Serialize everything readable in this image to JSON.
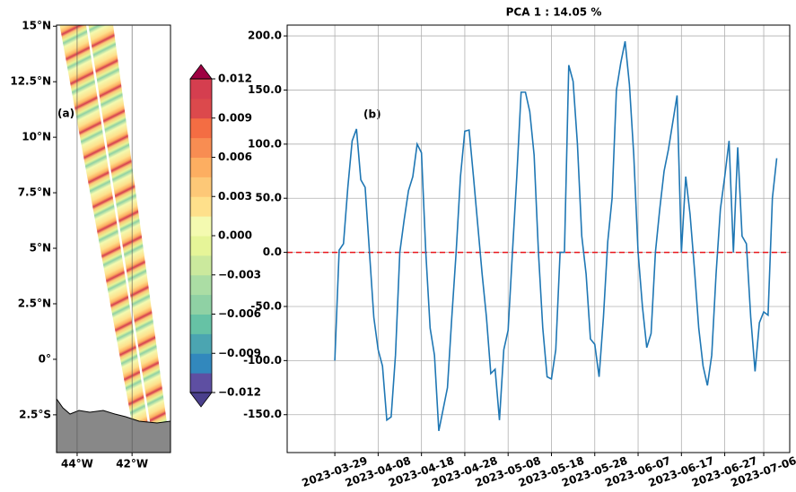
{
  "chart_data": [
    {
      "type": "map",
      "title": "(a)",
      "xlim": [
        -44.75,
        -40.6
      ],
      "ylim": [
        -4.2,
        15.05
      ],
      "xticks": [
        {
          "value": -44,
          "label": "44°W"
        },
        {
          "value": -42,
          "label": "42°W"
        }
      ],
      "yticks": [
        {
          "value": 15,
          "label": "15°N"
        },
        {
          "value": 12.5,
          "label": "12.5°N"
        },
        {
          "value": 10,
          "label": "10°N"
        },
        {
          "value": 7.5,
          "label": "7.5°N"
        },
        {
          "value": 5,
          "label": "5°N"
        },
        {
          "value": 2.5,
          "label": "2.5°N"
        },
        {
          "value": 0,
          "label": "0°"
        },
        {
          "value": -2.5,
          "label": "2.5°S"
        }
      ],
      "colorbar_lim": [
        -0.012,
        0.012
      ],
      "colorbar_ticks": [
        0.012,
        0.009,
        0.006,
        0.003,
        {
          "value": 0,
          "label": "0.000"
        },
        {
          "value": -0.003,
          "label": "−0.003"
        },
        {
          "value": -0.006,
          "label": "−0.006"
        },
        {
          "value": -0.009,
          "label": "−0.009"
        },
        {
          "value": -0.012,
          "label": "−0.012"
        }
      ],
      "colorbar_colors": [
        "#5e4fa2",
        "#3288bd",
        "#4ba5b1",
        "#66c2a5",
        "#8fd1a4",
        "#abdda4",
        "#cbe99d",
        "#e6f598",
        "#f4fab0",
        "#fee08b",
        "#fdc877",
        "#fdae61",
        "#f88d52",
        "#f46d43",
        "#dc494c",
        "#d53e4f"
      ],
      "colorbar_extend_colors": [
        "#4a3f8c",
        "#9e0142"
      ]
    },
    {
      "type": "line",
      "title": "PCA 1 : 14.05 %",
      "annotation": "(b)",
      "x": [
        "2023-03-29",
        "2023-03-30",
        "2023-03-31",
        "2023-04-01",
        "2023-04-02",
        "2023-04-03",
        "2023-04-04",
        "2023-04-05",
        "2023-04-06",
        "2023-04-07",
        "2023-04-08",
        "2023-04-09",
        "2023-04-10",
        "2023-04-11",
        "2023-04-12",
        "2023-04-13",
        "2023-04-14",
        "2023-04-15",
        "2023-04-16",
        "2023-04-17",
        "2023-04-18",
        "2023-04-19",
        "2023-04-20",
        "2023-04-21",
        "2023-04-22",
        "2023-04-23",
        "2023-04-24",
        "2023-04-25",
        "2023-04-26",
        "2023-04-27",
        "2023-04-28",
        "2023-04-29",
        "2023-04-30",
        "2023-05-01",
        "2023-05-02",
        "2023-05-03",
        "2023-05-04",
        "2023-05-05",
        "2023-05-06",
        "2023-05-07",
        "2023-05-08",
        "2023-05-09",
        "2023-05-10",
        "2023-05-11",
        "2023-05-12",
        "2023-05-13",
        "2023-05-14",
        "2023-05-15",
        "2023-05-16",
        "2023-05-17",
        "2023-05-18",
        "2023-05-19",
        "2023-05-20",
        "2023-05-21",
        "2023-05-22",
        "2023-05-23",
        "2023-05-24",
        "2023-05-25",
        "2023-05-26",
        "2023-05-27",
        "2023-05-28",
        "2023-05-29",
        "2023-05-30",
        "2023-05-31",
        "2023-06-01",
        "2023-06-02",
        "2023-06-03",
        "2023-06-04",
        "2023-06-05",
        "2023-06-06",
        "2023-06-07",
        "2023-06-08",
        "2023-06-09",
        "2023-06-10",
        "2023-06-11",
        "2023-06-12",
        "2023-06-13",
        "2023-06-14",
        "2023-06-15",
        "2023-06-16",
        "2023-06-17",
        "2023-06-18",
        "2023-06-19",
        "2023-06-20",
        "2023-06-21",
        "2023-06-22",
        "2023-06-23",
        "2023-06-24",
        "2023-06-25",
        "2023-06-26",
        "2023-06-27",
        "2023-06-28",
        "2023-06-29",
        "2023-06-30",
        "2023-07-01",
        "2023-07-02",
        "2023-07-03",
        "2023-07-04",
        "2023-07-05",
        "2023-07-06",
        "2023-07-07",
        "2023-07-08",
        "2023-07-09"
      ],
      "series": [
        {
          "color": "#1f77b4",
          "values": [
            -100,
            2,
            8,
            60,
            103,
            114,
            67,
            60,
            0,
            -60,
            -90,
            -105,
            -155,
            -152,
            -95,
            0,
            30,
            57,
            70,
            100,
            92,
            0,
            -70,
            -95,
            -165,
            -145,
            -125,
            -60,
            0,
            70,
            112,
            113,
            70,
            25,
            -20,
            -60,
            -112,
            -108,
            -155,
            -90,
            -72,
            0,
            70,
            148,
            148,
            130,
            90,
            0,
            -70,
            -115,
            -117,
            -90,
            0,
            0,
            173,
            158,
            100,
            15,
            -20,
            -80,
            -85,
            -115,
            -60,
            10,
            50,
            150,
            175,
            195,
            155,
            90,
            0,
            -50,
            -88,
            -75,
            0,
            40,
            75,
            95,
            120,
            145,
            0,
            70,
            35,
            -15,
            -70,
            -105,
            -123,
            -95,
            -20,
            40,
            70,
            103,
            0,
            97,
            15,
            8,
            -60,
            -110,
            -65,
            -55,
            -58,
            50,
            87
          ]
        }
      ],
      "xlim": [
        "2023-03-18",
        "2023-07-12"
      ],
      "xticks": [
        "2023-03-29",
        "2023-04-08",
        "2023-04-18",
        "2023-04-28",
        "2023-05-08",
        "2023-05-18",
        "2023-05-28",
        "2023-06-07",
        "2023-06-17",
        "2023-06-27",
        "2023-07-06"
      ],
      "ylim": [
        -185,
        210
      ],
      "yticks": [
        {
          "value": 200,
          "label": "200.0"
        },
        {
          "value": 150,
          "label": "150.0"
        },
        {
          "value": 100,
          "label": "100.0"
        },
        {
          "value": 50,
          "label": "50.0"
        },
        {
          "value": 0,
          "label": "0.0"
        },
        {
          "value": -50,
          "label": "-50.0"
        },
        {
          "value": -100,
          "label": "-100.0"
        },
        {
          "value": -150,
          "label": "-150.0"
        }
      ],
      "grid": true,
      "hline": {
        "value": 0,
        "color": "#e8141a"
      }
    }
  ]
}
